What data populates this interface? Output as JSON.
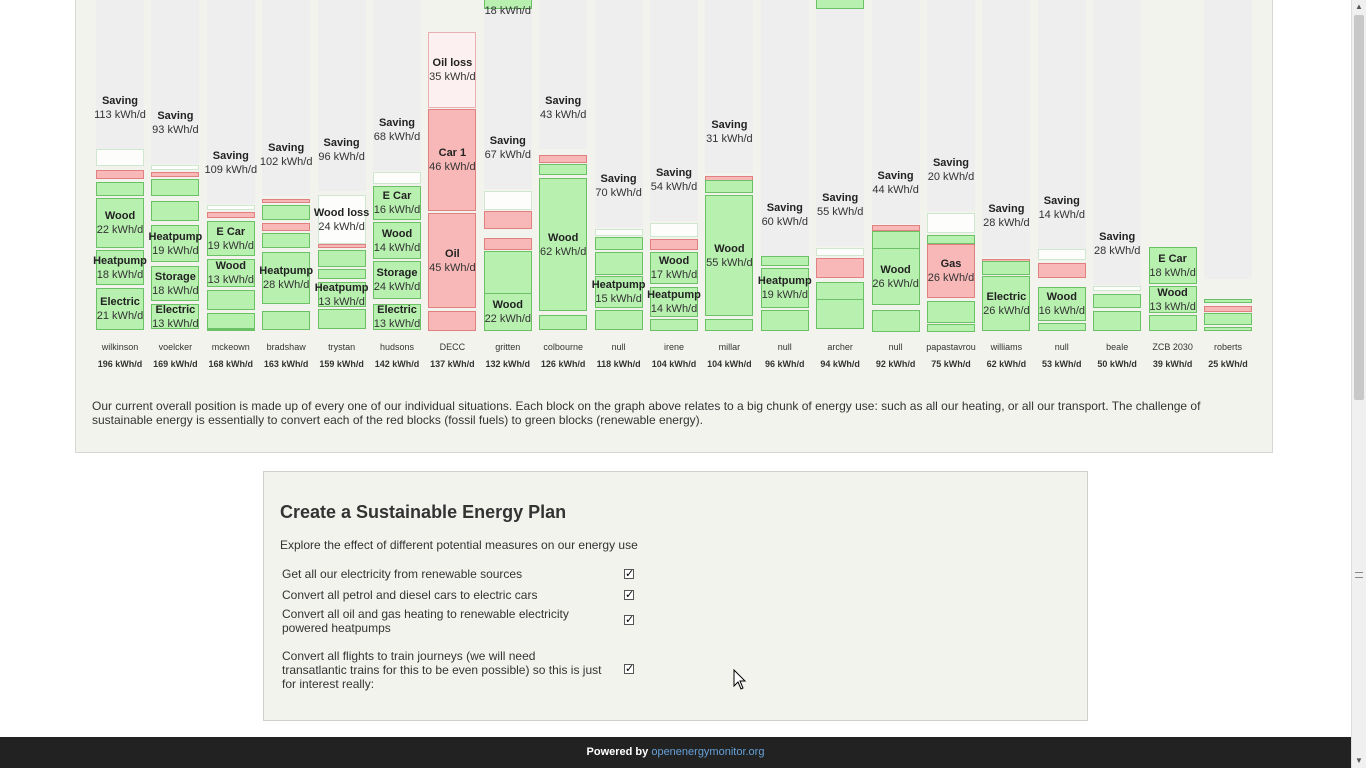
{
  "columns": [
    {
      "name": "wilkinson",
      "value": "196 kWh/d",
      "blocks": [
        {
          "k": "saving",
          "l": "Saving",
          "v": "113 kWh/d"
        },
        {
          "k": "white"
        },
        {
          "k": "red"
        },
        {
          "k": "green"
        },
        {
          "k": "green",
          "l": "Wood",
          "v": "22 kWh/d"
        },
        {
          "k": "green",
          "l": "Heatpump",
          "v": "18 kWh/d"
        },
        {
          "k": "green",
          "l": "Electric",
          "v": "21 kWh/d"
        }
      ]
    },
    {
      "name": "voelcker",
      "value": "169 kWh/d",
      "blocks": [
        {
          "k": "saving",
          "l": "Saving",
          "v": "93 kWh/d"
        },
        {
          "k": "white"
        },
        {
          "k": "red"
        },
        {
          "k": "green"
        },
        {
          "k": "green"
        },
        {
          "k": "green",
          "l": "Heatpump",
          "v": "19 kWh/d"
        },
        {
          "k": "green",
          "l": "Storage",
          "v": "18 kWh/d"
        },
        {
          "k": "green",
          "l": "Electric",
          "v": "13 kWh/d"
        }
      ]
    },
    {
      "name": "mckeown",
      "value": "168 kWh/d",
      "blocks": [
        {
          "k": "saving",
          "l": "Saving",
          "v": "109 kWh/d"
        },
        {
          "k": "white"
        },
        {
          "k": "red"
        },
        {
          "k": "green",
          "l": "E Car",
          "v": "19 kWh/d"
        },
        {
          "k": "green",
          "l": "Wood",
          "v": "13 kWh/d"
        },
        {
          "k": "green"
        },
        {
          "k": "green"
        },
        {
          "k": "green"
        }
      ]
    },
    {
      "name": "bradshaw",
      "value": "163 kWh/d",
      "blocks": [
        {
          "k": "saving",
          "l": "Saving",
          "v": "102 kWh/d"
        },
        {
          "k": "red"
        },
        {
          "k": "green"
        },
        {
          "k": "red"
        },
        {
          "k": "green"
        },
        {
          "k": "green",
          "l": "Heatpump",
          "v": "28 kWh/d"
        },
        {
          "k": "green"
        }
      ]
    },
    {
      "name": "trystan",
      "value": "159 kWh/d",
      "blocks": [
        {
          "k": "saving",
          "l": "Saving",
          "v": "96 kWh/d"
        },
        {
          "k": "white",
          "l": "Wood loss",
          "v": "24 kWh/d"
        },
        {
          "k": "red"
        },
        {
          "k": "green"
        },
        {
          "k": "green"
        },
        {
          "k": "green",
          "l": "Heatpump",
          "v": "13 kWh/d"
        },
        {
          "k": "green"
        }
      ]
    },
    {
      "name": "hudsons",
      "value": "142 kWh/d",
      "blocks": [
        {
          "k": "saving",
          "l": "Saving",
          "v": "68 kWh/d"
        },
        {
          "k": "white"
        },
        {
          "k": "green",
          "l": "E Car",
          "v": "16 kWh/d"
        },
        {
          "k": "green",
          "l": "Wood",
          "v": "14 kWh/d"
        },
        {
          "k": "green",
          "l": "Storage",
          "v": "24 kWh/d"
        },
        {
          "k": "green",
          "l": "Electric",
          "v": "13 kWh/d"
        }
      ]
    },
    {
      "name": "DECC",
      "value": "137 kWh/d",
      "blocks": [
        {
          "k": "oilloss",
          "l": "Oil loss",
          "v": "35 kWh/d"
        },
        {
          "k": "red",
          "l": "Car 1",
          "v": "46 kWh/d"
        },
        {
          "k": "red",
          "l": "Oil",
          "v": "45 kWh/d"
        },
        {
          "k": "red"
        }
      ]
    },
    {
      "name": "gritten",
      "value": "132 kWh/d",
      "blocks": [
        {
          "k": "saving",
          "l": "Saving",
          "v": "67 kWh/d"
        },
        {
          "k": "white"
        },
        {
          "k": "red"
        },
        {
          "k": "red"
        },
        {
          "k": "green"
        },
        {
          "k": "green",
          "l": "Wood",
          "v": "22 kWh/d"
        },
        {
          "k": "green",
          "l": "Electric",
          "v": "18 kWh/d"
        }
      ]
    },
    {
      "name": "colbourne",
      "value": "126 kWh/d",
      "blocks": [
        {
          "k": "saving",
          "l": "Saving",
          "v": "43 kWh/d"
        },
        {
          "k": "red"
        },
        {
          "k": "green"
        },
        {
          "k": "green",
          "l": "Wood",
          "v": "62 kWh/d"
        },
        {
          "k": "green"
        }
      ]
    },
    {
      "name": "null",
      "value": "118 kWh/d",
      "blocks": [
        {
          "k": "saving",
          "l": "Saving",
          "v": "70 kWh/d"
        },
        {
          "k": "white"
        },
        {
          "k": "green"
        },
        {
          "k": "green"
        },
        {
          "k": "green",
          "l": "Heatpump",
          "v": "15 kWh/d"
        },
        {
          "k": "green"
        }
      ]
    },
    {
      "name": "irene",
      "value": "104 kWh/d",
      "blocks": [
        {
          "k": "saving",
          "l": "Saving",
          "v": "54 kWh/d"
        },
        {
          "k": "white"
        },
        {
          "k": "red"
        },
        {
          "k": "green",
          "l": "Wood",
          "v": "17 kWh/d"
        },
        {
          "k": "green",
          "l": "Heatpump",
          "v": "14 kWh/d"
        },
        {
          "k": "green"
        }
      ]
    },
    {
      "name": "millar",
      "value": "104 kWh/d",
      "blocks": [
        {
          "k": "saving",
          "l": "Saving",
          "v": "31 kWh/d"
        },
        {
          "k": "red"
        },
        {
          "k": "green"
        },
        {
          "k": "green",
          "l": "Wood",
          "v": "55 kWh/d"
        },
        {
          "k": "green"
        }
      ]
    },
    {
      "name": "null",
      "value": "96 kWh/d",
      "blocks": [
        {
          "k": "saving",
          "l": "Saving",
          "v": "60 kWh/d"
        },
        {
          "k": "green"
        },
        {
          "k": "green",
          "l": "Heatpump",
          "v": "19 kWh/d"
        },
        {
          "k": "green"
        }
      ]
    },
    {
      "name": "archer",
      "value": "94 kWh/d",
      "blocks": [
        {
          "k": "saving",
          "l": "Saving",
          "v": "55 kWh/d"
        },
        {
          "k": "white"
        },
        {
          "k": "red"
        },
        {
          "k": "green"
        },
        {
          "k": "green"
        },
        {
          "k": "green"
        }
      ]
    },
    {
      "name": "null",
      "value": "92 kWh/d",
      "blocks": [
        {
          "k": "saving",
          "l": "Saving",
          "v": "44 kWh/d"
        },
        {
          "k": "red"
        },
        {
          "k": "green"
        },
        {
          "k": "green",
          "l": "Wood",
          "v": "26 kWh/d"
        },
        {
          "k": "green"
        }
      ]
    },
    {
      "name": "papastavrou",
      "value": "75 kWh/d",
      "blocks": [
        {
          "k": "saving",
          "l": "Saving",
          "v": "20 kWh/d"
        },
        {
          "k": "white"
        },
        {
          "k": "green"
        },
        {
          "k": "red",
          "l": "Gas",
          "v": "26 kWh/d"
        },
        {
          "k": "green"
        },
        {
          "k": "green"
        }
      ]
    },
    {
      "name": "williams",
      "value": "62 kWh/d",
      "blocks": [
        {
          "k": "saving",
          "l": "Saving",
          "v": "28 kWh/d"
        },
        {
          "k": "red"
        },
        {
          "k": "green"
        },
        {
          "k": "green",
          "l": "Electric",
          "v": "26 kWh/d"
        }
      ]
    },
    {
      "name": "null",
      "value": "53 kWh/d",
      "blocks": [
        {
          "k": "saving",
          "l": "Saving",
          "v": "14 kWh/d"
        },
        {
          "k": "white"
        },
        {
          "k": "red"
        },
        {
          "k": "green",
          "l": "Wood",
          "v": "16 kWh/d"
        },
        {
          "k": "green"
        }
      ]
    },
    {
      "name": "beale",
      "value": "50 kWh/d",
      "blocks": [
        {
          "k": "saving",
          "l": "Saving",
          "v": "28 kWh/d"
        },
        {
          "k": "white"
        },
        {
          "k": "green"
        },
        {
          "k": "green"
        }
      ]
    },
    {
      "name": "ZCB 2030",
      "value": "39 kWh/d",
      "blocks": [
        {
          "k": "green",
          "l": "E Car",
          "v": "18 kWh/d"
        },
        {
          "k": "green",
          "l": "Wood",
          "v": "13 kWh/d"
        },
        {
          "k": "green"
        }
      ]
    },
    {
      "name": "roberts",
      "value": "25 kWh/d",
      "blocks": [
        {
          "k": "saving"
        },
        {
          "k": "green"
        },
        {
          "k": "red"
        },
        {
          "k": "green"
        },
        {
          "k": "green"
        }
      ]
    }
  ],
  "description": "Our current overall position is made up of every one of our individual situations. Each block on the graph above relates to a big chunk of energy use: such as all our heating, or all our transport. The challenge of sustainable energy is essentially to convert each of the red blocks (fossil fuels) to green blocks (renewable energy).",
  "plan": {
    "title": "Create a Sustainable Energy Plan",
    "intro": "Explore the effect of different potential measures on our energy use",
    "measures": [
      {
        "label": "Get all our electricity from renewable sources",
        "checked": true
      },
      {
        "label": "Convert all petrol and diesel cars to electric cars",
        "checked": true
      },
      {
        "label": "Convert all oil and gas heating to renewable electricity powered heatpumps",
        "checked": true
      },
      {
        "label": "Convert all flights to train journeys (we will need transatlantic trains for this to be even possible) so this is just for interest really:",
        "checked": true
      }
    ]
  },
  "footer": {
    "powered_by": "Powered by",
    "link": "openenergymonitor.org"
  },
  "colors": {
    "green": "#b8f0b0",
    "red": "#f8b8b8",
    "saving": "#eeeeee",
    "footer": "#222222",
    "link": "#66a0d8"
  }
}
